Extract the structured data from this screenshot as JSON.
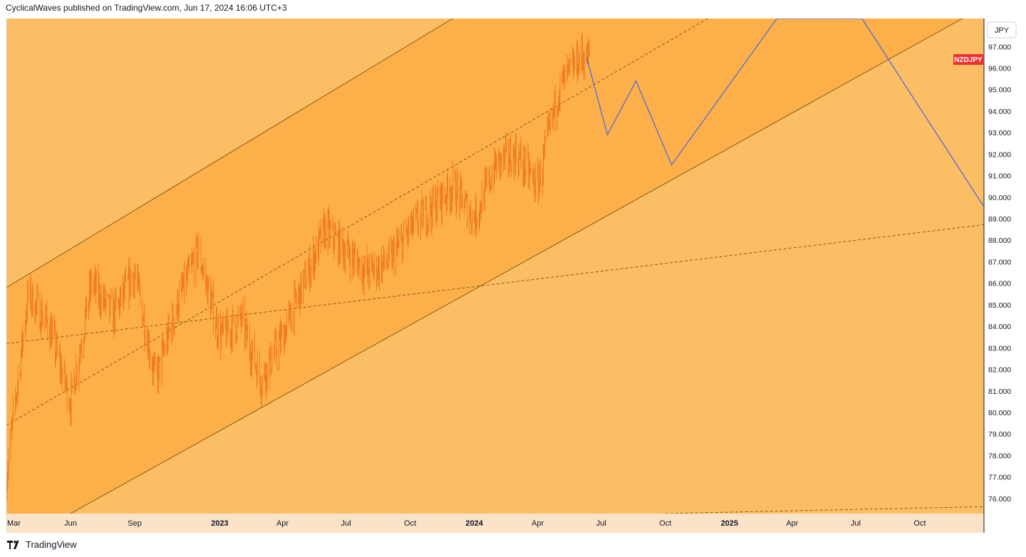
{
  "header": {
    "publish_line": "CyclicalWaves published on TradingView.com, Jun 17, 2024 16:06 UTC+3"
  },
  "footer": {
    "brand": "TradingView",
    "logo_icon": "tradingview-logo-icon"
  },
  "colors": {
    "band_outer": "#fcbe64",
    "band_inner": "#fdb04a",
    "axis_bg": "#fbe3c8",
    "candle": "#ef7b1d",
    "projection": "#4f6fd4",
    "channel_line": "#8a5a12",
    "symbol_badge": "#f12f2f"
  },
  "chart_data": {
    "type": "line",
    "symbol": "NZDJPY",
    "currency_label": "JPY",
    "price_axis": {
      "ylim": [
        75.3,
        98.3
      ],
      "ticks": [
        "97.000",
        "96.000",
        "95.000",
        "94.000",
        "93.000",
        "92.000",
        "91.000",
        "90.000",
        "89.000",
        "88.000",
        "87.000",
        "86.000",
        "85.000",
        "84.000",
        "83.000",
        "82.000",
        "81.000",
        "80.000",
        "79.000",
        "78.000",
        "77.000",
        "76.000"
      ]
    },
    "time_axis": {
      "ticks": [
        "Mar",
        "Jun",
        "Sep",
        "2023",
        "Apr",
        "Jul",
        "Oct",
        "2024",
        "Apr",
        "Jul",
        "Oct",
        "2025",
        "Apr",
        "Jul",
        "Oct"
      ],
      "bold_ticks": [
        "2023",
        "2024",
        "2025"
      ]
    },
    "price_series": {
      "name": "NZDJPY",
      "t": [
        "2022-03",
        "2022-04",
        "2022-05",
        "2022-06",
        "2022-07",
        "2022-08",
        "2022-09",
        "2022-10",
        "2022-11",
        "2022-12",
        "2023-01",
        "2023-02",
        "2023-03",
        "2023-04",
        "2023-05",
        "2023-06",
        "2023-07",
        "2023-08",
        "2023-09",
        "2023-10",
        "2023-11",
        "2023-12",
        "2024-01",
        "2024-02",
        "2024-03",
        "2024-04",
        "2024-05",
        "2024-06"
      ],
      "close": [
        77.0,
        85.5,
        84.0,
        80.5,
        86.0,
        84.5,
        86.5,
        81.5,
        85.0,
        87.5,
        83.5,
        84.3,
        81.5,
        83.5,
        86.0,
        88.5,
        87.5,
        86.5,
        87.0,
        88.5,
        89.5,
        90.5,
        89.0,
        91.5,
        92.0,
        90.5,
        95.0,
        96.5
      ]
    },
    "projection_path": {
      "name": "",
      "t": [
        "2024-06-10",
        "2024-07-10",
        "2024-08-20",
        "2024-10-10",
        "2025-03-10",
        "2025-07-10",
        "2025-12-31"
      ],
      "y": [
        96.5,
        92.9,
        95.4,
        91.5,
        98.3,
        98.3,
        89.6
      ]
    },
    "channel": {
      "upper": [
        [
          "2022-03",
          85.8
        ],
        [
          "2023-12",
          98.3
        ]
      ],
      "lower": [
        [
          "2022-06",
          75.3
        ],
        [
          "2025-12",
          98.3
        ]
      ],
      "midline": [
        [
          "2022-03",
          79.4
        ],
        [
          "2024-12",
          98.3
        ]
      ],
      "long_trend": [
        [
          "2022-03",
          83.2
        ],
        [
          "2025-12",
          88.6
        ]
      ],
      "bottom_trend": [
        [
          "2024-10",
          75.3
        ],
        [
          "2025-12",
          75.6
        ]
      ]
    },
    "grid": false
  }
}
